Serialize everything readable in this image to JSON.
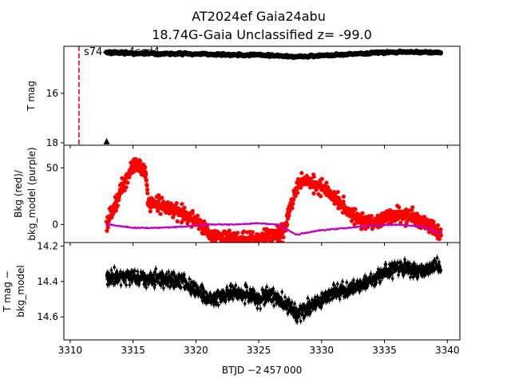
{
  "chart_data": {
    "type": "scatter",
    "title_line1": "AT2024ef  Gaia24abu",
    "title_line2": "18.74G-Gaia Unclassified z= -99.0",
    "xlabel": "BTJD −2 457 000",
    "xlim": [
      3309.5,
      3341
    ],
    "xticks": [
      "3310",
      "3315",
      "3320",
      "3325",
      "3330",
      "3335",
      "3340"
    ],
    "annotation": "s74-cam4ccd4",
    "sector_line_x": 3310.7,
    "colors": {
      "lightcurve": "#000000",
      "background": "#ff0000",
      "bkg_model": "#bf00bf",
      "sector_line": "#ff0000"
    },
    "panels": [
      {
        "name": "tmag",
        "ylabel": "T mag",
        "ylim": [
          18.1,
          14.1
        ],
        "yticks": [
          "16",
          "18"
        ],
        "series": [
          {
            "name": "T mag",
            "marker": "circle",
            "x": [
              3313,
              3315,
              3317,
              3319,
              3321,
              3323,
              3325,
              3327,
              3328,
              3329,
              3331,
              3333,
              3335,
              3337,
              3339.5
            ],
            "y": [
              14.35,
              14.38,
              14.4,
              14.4,
              14.42,
              14.45,
              14.45,
              14.5,
              14.52,
              14.5,
              14.45,
              14.4,
              14.35,
              14.32,
              14.35
            ]
          },
          {
            "name": "upper limit",
            "marker": "triangle",
            "x": [
              3312.9
            ],
            "y": [
              18.0
            ]
          }
        ]
      },
      {
        "name": "background",
        "ylabel_line1": "Bkg (red)/",
        "ylabel_line2": "bkg_model (purple)",
        "ylim": [
          -16,
          70
        ],
        "yticks": [
          "0",
          "50"
        ],
        "series": [
          {
            "name": "Bkg",
            "x": [
              3312.9,
              3313.5,
              3314,
              3314.5,
              3315,
              3315.5,
              3316,
              3316.2,
              3317,
              3318,
              3319,
              3320,
              3321,
              3322,
              3323,
              3324,
              3325,
              3326,
              3327,
              3327.5,
              3328,
              3328.5,
              3329,
              3330,
              3331,
              3332,
              3333,
              3334,
              3335,
              3336,
              3337,
              3338,
              3339,
              3339.5
            ],
            "y": [
              0,
              15,
              30,
              42,
              50,
              55,
              45,
              20,
              18,
              15,
              8,
              4,
              -8,
              -12,
              -14,
              -13,
              -12,
              -10,
              -6,
              15,
              32,
              40,
              38,
              33,
              25,
              12,
              5,
              0,
              6,
              10,
              8,
              2,
              -5,
              -8
            ]
          },
          {
            "name": "bkg_model",
            "x": [
              3313,
              3315,
              3317,
              3319,
              3321,
              3323,
              3325,
              3326.5,
              3328,
              3330,
              3332,
              3334,
              3336,
              3338,
              3339.5
            ],
            "y": [
              0,
              -3,
              -3,
              -2,
              0,
              0,
              1,
              0,
              -9,
              -5,
              -3,
              -1,
              0,
              -2,
              -8
            ]
          }
        ]
      },
      {
        "name": "residual",
        "ylabel_line1": "T mag −",
        "ylabel_line2": "bkg_model",
        "ylim": [
          14.73,
          14.18
        ],
        "yticks": [
          "14.2",
          "14.4",
          "14.6"
        ],
        "series": [
          {
            "name": "T mag - bkg_model",
            "x": [
              3313,
              3314,
              3315,
              3316,
              3317,
              3318,
              3319,
              3320,
              3321,
              3322,
              3323,
              3324,
              3325,
              3326,
              3327,
              3328,
              3329,
              3330,
              3331,
              3332,
              3333,
              3334,
              3335,
              3336,
              3337,
              3338,
              3339,
              3339.5
            ],
            "y": [
              14.38,
              14.37,
              14.38,
              14.39,
              14.38,
              14.39,
              14.4,
              14.45,
              14.5,
              14.48,
              14.46,
              14.47,
              14.5,
              14.47,
              14.52,
              14.58,
              14.55,
              14.5,
              14.47,
              14.45,
              14.42,
              14.4,
              14.35,
              14.32,
              14.33,
              14.34,
              14.31,
              14.33
            ]
          }
        ]
      }
    ]
  }
}
